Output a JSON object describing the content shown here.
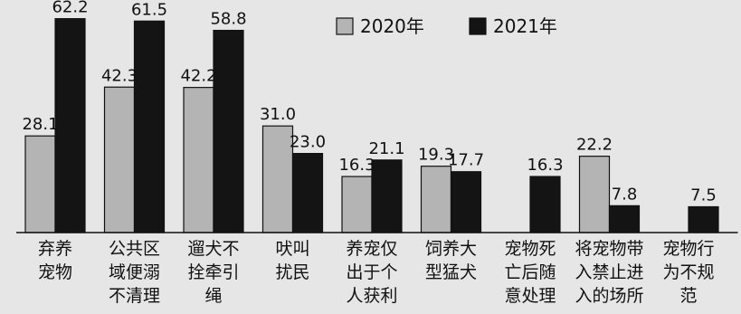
{
  "chart_data": {
    "type": "bar",
    "categories": [
      [
        "弃养",
        "宠物"
      ],
      [
        "公共区",
        "域便溺",
        "不清理"
      ],
      [
        "遛犬不",
        "拴牵引",
        "绳"
      ],
      [
        "吠叫",
        "扰民"
      ],
      [
        "养宠仅",
        "出于个",
        "人获利"
      ],
      [
        "饲养大",
        "型猛犬"
      ],
      [
        "宠物死",
        "亡后随",
        "意处理"
      ],
      [
        "将宠物带",
        "入禁止进",
        "入的场所"
      ],
      [
        "宠物行",
        "为不规",
        "范"
      ]
    ],
    "series": [
      {
        "name": "2020年",
        "color": "#b4b4b4",
        "values": [
          28.1,
          42.3,
          42.2,
          31.0,
          16.3,
          19.3,
          null,
          22.2,
          null
        ]
      },
      {
        "name": "2021年",
        "color": "#141414",
        "values": [
          62.2,
          61.5,
          58.8,
          23.0,
          21.1,
          17.7,
          16.3,
          7.8,
          7.5
        ]
      }
    ],
    "value_labels": [
      [
        "28.1",
        "42.3",
        "42.2",
        "31.0",
        "16.3",
        "19.3",
        "",
        "22.2",
        ""
      ],
      [
        "62.2",
        "61.5",
        "58.8",
        "23.0",
        "21.1",
        "17.7",
        "16.3",
        "7.8",
        "7.5"
      ]
    ],
    "ylim": [
      0,
      65
    ],
    "legend_position": "top-center",
    "grid": false
  }
}
